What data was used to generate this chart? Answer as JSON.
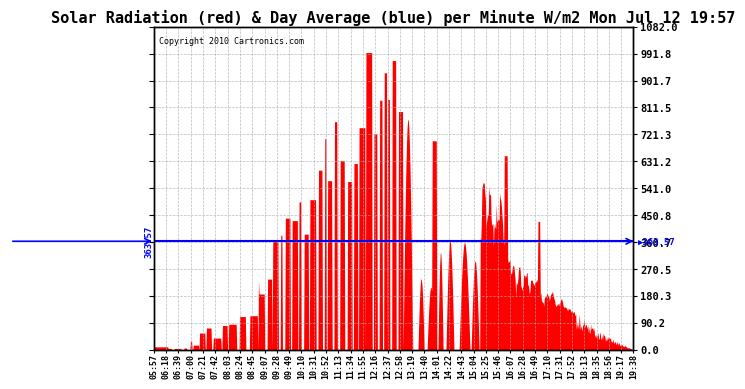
{
  "title": "Solar Radiation (red) & Day Average (blue) per Minute W/m2 Mon Jul 12 19:57",
  "copyright": "Copyright 2010 Cartronics.com",
  "avg_value": 363.57,
  "ymax": 1082.0,
  "ymin": 0.0,
  "yticks": [
    0.0,
    90.2,
    180.3,
    270.5,
    360.7,
    450.8,
    541.0,
    631.2,
    721.3,
    811.5,
    901.7,
    991.8,
    1082.0
  ],
  "fill_color": "#FF0000",
  "line_color": "#0000FF",
  "bg_color": "#FFFFFF",
  "grid_color": "#AAAAAA",
  "title_fontsize": 11,
  "x_tick_labels": [
    "05:57",
    "06:18",
    "06:39",
    "07:00",
    "07:21",
    "07:42",
    "08:03",
    "08:24",
    "08:45",
    "09:07",
    "09:28",
    "09:49",
    "10:10",
    "10:31",
    "10:52",
    "11:13",
    "11:34",
    "11:55",
    "12:16",
    "12:37",
    "12:58",
    "13:19",
    "13:40",
    "14:01",
    "14:22",
    "14:43",
    "15:04",
    "15:25",
    "15:46",
    "16:07",
    "16:28",
    "16:49",
    "17:10",
    "17:31",
    "17:52",
    "18:13",
    "18:35",
    "18:56",
    "19:17",
    "19:38"
  ]
}
